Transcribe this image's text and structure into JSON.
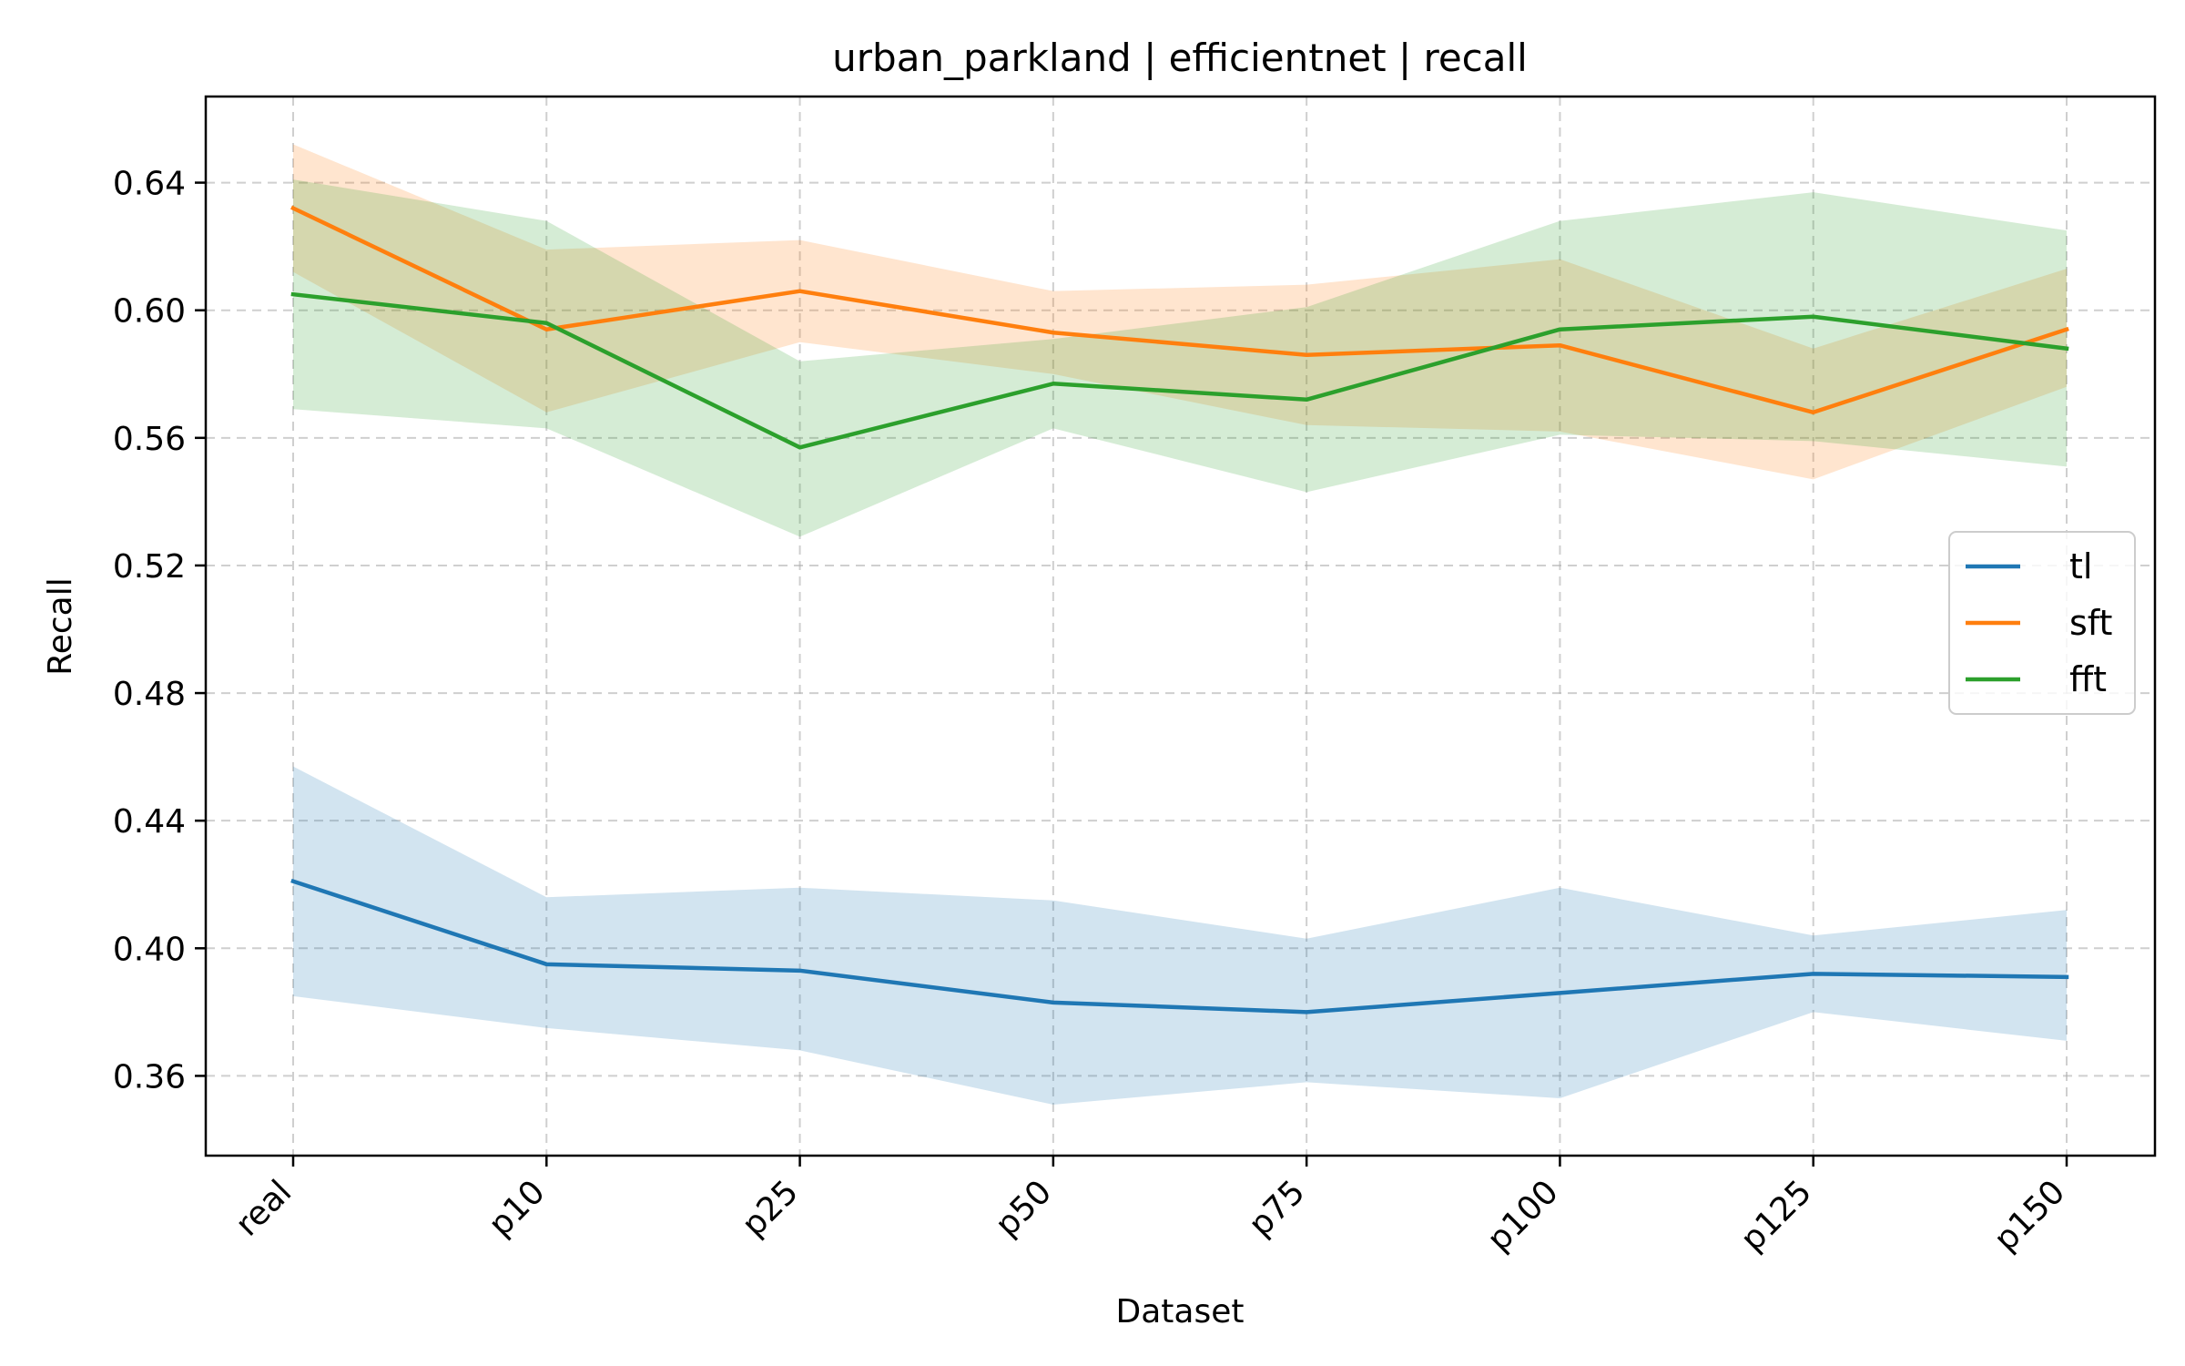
{
  "chart_data": {
    "type": "line",
    "title": "urban_parkland | efficientnet | recall",
    "xlabel": "Dataset",
    "ylabel": "Recall",
    "categories": [
      "real",
      "p10",
      "p25",
      "p50",
      "p75",
      "p100",
      "p125",
      "p150"
    ],
    "ylim": [
      0.335,
      0.667
    ],
    "yticks": [
      0.36,
      0.4,
      0.44,
      0.48,
      0.52,
      0.56,
      0.6,
      0.64
    ],
    "ytick_labels": [
      "0.36",
      "0.40",
      "0.44",
      "0.48",
      "0.52",
      "0.56",
      "0.60",
      "0.64"
    ],
    "grid": true,
    "legend_position": "center-right",
    "series": [
      {
        "name": "tl",
        "color": "#1f77b4",
        "values": [
          0.421,
          0.395,
          0.393,
          0.383,
          0.38,
          0.386,
          0.392,
          0.391
        ],
        "band_upper": [
          0.457,
          0.416,
          0.419,
          0.415,
          0.403,
          0.419,
          0.404,
          0.412
        ],
        "band_lower": [
          0.385,
          0.375,
          0.368,
          0.351,
          0.358,
          0.353,
          0.38,
          0.371
        ]
      },
      {
        "name": "sft",
        "color": "#ff7f0e",
        "values": [
          0.632,
          0.594,
          0.606,
          0.593,
          0.586,
          0.589,
          0.568,
          0.594
        ],
        "band_upper": [
          0.652,
          0.619,
          0.622,
          0.606,
          0.608,
          0.616,
          0.588,
          0.613
        ],
        "band_lower": [
          0.612,
          0.568,
          0.59,
          0.58,
          0.564,
          0.562,
          0.547,
          0.576
        ]
      },
      {
        "name": "fft",
        "color": "#2ca02c",
        "values": [
          0.605,
          0.596,
          0.557,
          0.577,
          0.572,
          0.594,
          0.598,
          0.588
        ],
        "band_upper": [
          0.641,
          0.628,
          0.584,
          0.591,
          0.601,
          0.628,
          0.637,
          0.625
        ],
        "band_lower": [
          0.569,
          0.563,
          0.529,
          0.563,
          0.543,
          0.561,
          0.559,
          0.551
        ]
      }
    ]
  }
}
